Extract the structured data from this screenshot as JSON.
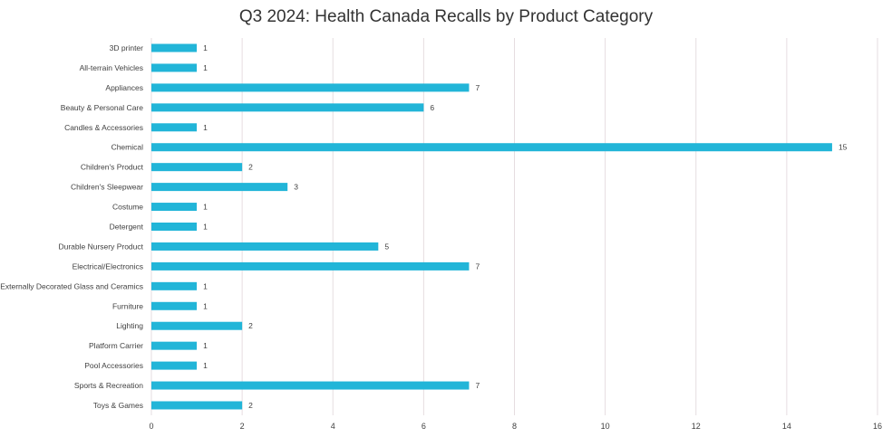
{
  "chart_data": {
    "type": "bar",
    "orientation": "horizontal",
    "title": "Q3 2024: Health Canada Recalls by Product Category",
    "xlabel": "",
    "ylabel": "",
    "categories": [
      "3D printer",
      "All-terrain Vehicles",
      "Appliances",
      "Beauty & Personal Care",
      "Candles & Accessories",
      "Chemical",
      "Children's Product",
      "Children's Sleepwear",
      "Costume",
      "Detergent",
      "Durable Nursery Product",
      "Electrical/Electronics",
      "Externally Decorated Glass and Ceramics",
      "Furniture",
      "Lighting",
      "Platform Carrier",
      "Pool Accessories",
      "Sports & Recreation",
      "Toys & Games"
    ],
    "values": [
      1,
      1,
      7,
      6,
      1,
      15,
      2,
      3,
      1,
      1,
      5,
      7,
      1,
      1,
      2,
      1,
      1,
      7,
      2
    ],
    "xlim": [
      0,
      16
    ],
    "xticks": [
      0,
      2,
      4,
      6,
      8,
      10,
      12,
      14,
      16
    ],
    "grid": "vertical",
    "legend": "none",
    "data_labels": true,
    "bar_color": "#22b5d8",
    "grid_color": "#e6dde0"
  }
}
